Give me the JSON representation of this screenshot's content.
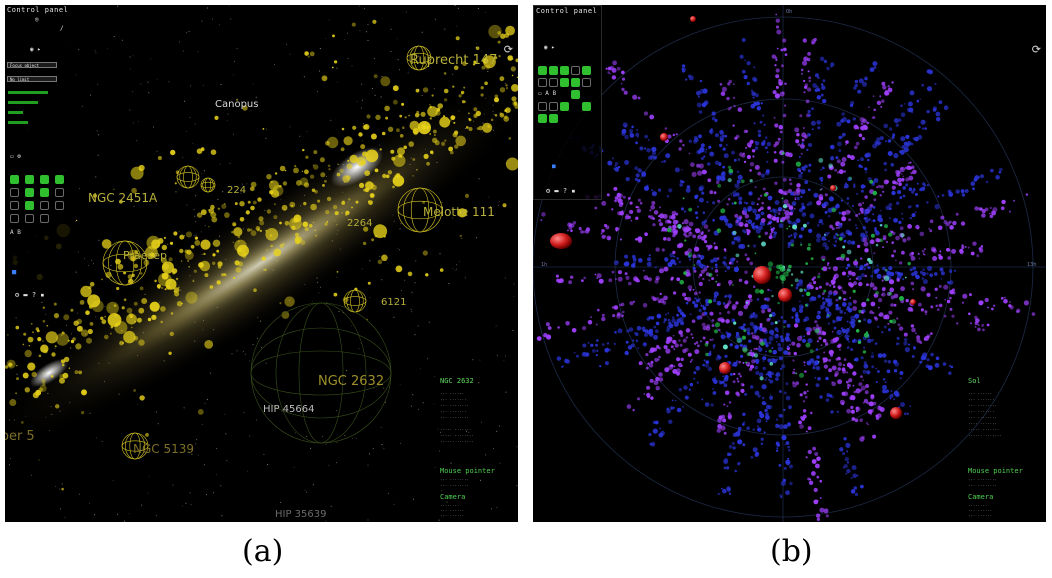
{
  "panel_a": {
    "control_panel_title": "Control panel",
    "mode_dropdown": "Focus object",
    "second_dropdown": "No limit",
    "labels": {
      "ruprecht": "Ruprecht 147",
      "canopus": "Canopus",
      "ngc2451a": "NGC 2451A",
      "melotte111": "Melotte 111",
      "ngc2632": "NGC 2632",
      "hip45664": "HIP 45664",
      "ngc5139": "NGC 5139",
      "hip35639": "HIP 35639",
      "l6121": "6121",
      "l2264": "2264",
      "l224": "224",
      "per5": "oer 5",
      "praesepe": "Praesep"
    },
    "info_title": "NGC 2632",
    "mouse_pointer": "Mouse pointer",
    "camera": "Camera"
  },
  "panel_b": {
    "control_panel_title": "Control panel",
    "info_title": "Sol",
    "mouse_pointer": "Mouse pointer",
    "camera": "Camera",
    "axis_labels": {
      "left": "1h",
      "right": "13h",
      "top": "0h"
    }
  },
  "captions": {
    "a": "(a)",
    "b": "(b)"
  },
  "colors": {
    "panel_green": "#2fbf2f",
    "cluster_yellow": "#e8d21a",
    "galaxy_purple": "#a040ff",
    "galaxy_blue": "#2b34d8"
  }
}
